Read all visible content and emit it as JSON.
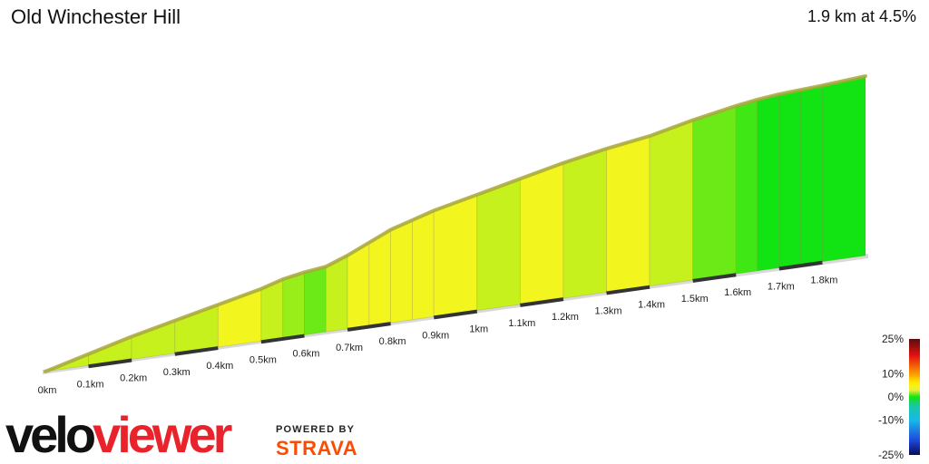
{
  "header": {
    "title": "Old Winchester Hill",
    "summary": "1.9 km at 4.5%"
  },
  "branding": {
    "logo_part1": "velo",
    "logo_part2": "viewer",
    "powered_by": "POWERED BY",
    "strava": "STRAVA"
  },
  "colors": {
    "yellow": "#f3f51f",
    "green": "#12e312",
    "ridge": "#a9a838",
    "base": "#d9d9d9",
    "tick_dark": "#333333"
  },
  "chart_data": {
    "type": "area",
    "x_unit": "km",
    "x_ticks": [
      "0km",
      "0.1km",
      "0.2km",
      "0.3km",
      "0.4km",
      "0.5km",
      "0.6km",
      "0.7km",
      "0.8km",
      "0.9km",
      "1km",
      "1.1km",
      "1.2km",
      "1.3km",
      "1.4km",
      "1.5km",
      "1.6km",
      "1.7km",
      "1.8km"
    ],
    "distance_km": [
      0,
      0.1,
      0.2,
      0.3,
      0.4,
      0.5,
      0.55,
      0.6,
      0.65,
      0.7,
      0.75,
      0.8,
      0.85,
      0.9,
      1.0,
      1.1,
      1.2,
      1.3,
      1.4,
      1.5,
      1.6,
      1.65,
      1.7,
      1.75,
      1.8,
      1.9
    ],
    "elevation_index": [
      0,
      3.5,
      7,
      10,
      13,
      16,
      18,
      19.2,
      20,
      22.5,
      25.5,
      28.5,
      30.5,
      32.5,
      35.5,
      38.5,
      41.5,
      44,
      46,
      49,
      51.5,
      52.5,
      53.2,
      53.6,
      54,
      55
    ],
    "segment_gradient_pct": [
      4,
      4,
      4,
      4,
      5,
      4,
      3,
      2,
      4,
      5,
      7,
      6,
      5,
      5,
      4,
      5,
      4,
      5,
      4,
      2,
      1,
      0,
      0,
      0,
      0
    ],
    "gradient_legend": {
      "labels": [
        "25%",
        "10%",
        "0%",
        "-10%",
        "-25%"
      ],
      "stops": [
        {
          "value": 25,
          "color": "#5a0d0d"
        },
        {
          "value": 18,
          "color": "#e01010"
        },
        {
          "value": 10,
          "color": "#ff9a00"
        },
        {
          "value": 6,
          "color": "#ffee00"
        },
        {
          "value": 3,
          "color": "#eaf03a"
        },
        {
          "value": 0,
          "color": "#12e312"
        },
        {
          "value": -4,
          "color": "#19c7a8"
        },
        {
          "value": -10,
          "color": "#18b9e8"
        },
        {
          "value": -18,
          "color": "#2050e0"
        },
        {
          "value": -25,
          "color": "#0a0a60"
        }
      ]
    }
  }
}
